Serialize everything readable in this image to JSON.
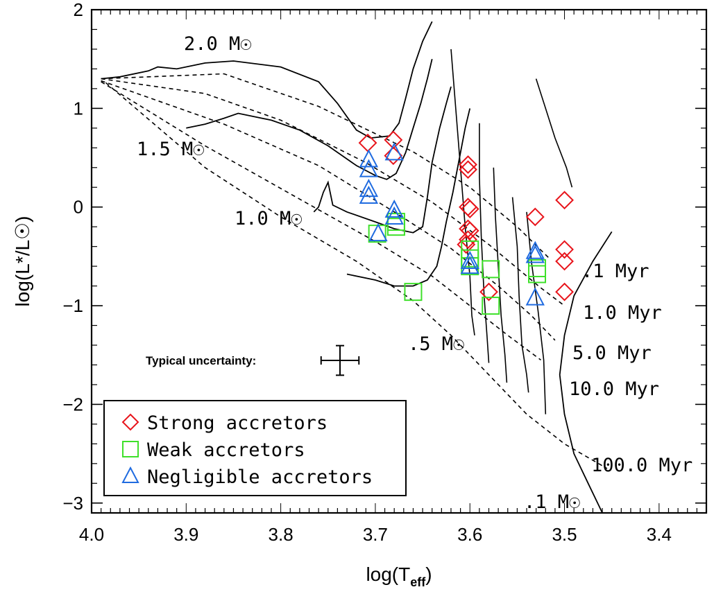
{
  "chart_data": {
    "type": "scatter",
    "xlabel_main": "log(T",
    "xlabel_sub": "eff",
    "xlabel_tail": ")",
    "ylabel": "log(L*/L☉)",
    "xlim": [
      4.0,
      3.35
    ],
    "ylim": [
      -3.1,
      2.0
    ],
    "x_axis_reversed": true,
    "x_ticks": [
      4.0,
      3.9,
      3.8,
      3.7,
      3.6,
      3.5,
      3.4
    ],
    "x_tick_labels": [
      "4.0",
      "3.9",
      "3.8",
      "3.7",
      "3.6",
      "3.5",
      "3.4"
    ],
    "y_ticks": [
      -3,
      -2,
      -1,
      0,
      1,
      2
    ],
    "y_tick_labels": [
      "−3",
      "−2",
      "−1",
      "0",
      "1",
      "2"
    ],
    "grid": false,
    "legend_placement": "bottom-left",
    "series": [
      {
        "name": "Strong accretors",
        "marker": "diamond",
        "color": "#e8141b",
        "points": [
          [
            3.708,
            0.65
          ],
          [
            3.681,
            0.68
          ],
          [
            3.681,
            0.52
          ],
          [
            3.602,
            0.43
          ],
          [
            3.602,
            0.38
          ],
          [
            3.602,
            0.0
          ],
          [
            3.6,
            -0.02
          ],
          [
            3.602,
            -0.22
          ],
          [
            3.6,
            -0.24
          ],
          [
            3.602,
            -0.33
          ],
          [
            3.604,
            -0.38
          ],
          [
            3.58,
            -0.86
          ],
          [
            3.531,
            -0.1
          ],
          [
            3.5,
            0.07
          ],
          [
            3.5,
            -0.43
          ],
          [
            3.5,
            -0.55
          ],
          [
            3.5,
            -0.86
          ]
        ]
      },
      {
        "name": "Weak accretors",
        "marker": "square",
        "color": "#3ee02a",
        "points": [
          [
            3.678,
            -0.15
          ],
          [
            3.678,
            -0.2
          ],
          [
            3.698,
            -0.27
          ],
          [
            3.66,
            -0.86
          ],
          [
            3.6,
            -0.43
          ],
          [
            3.6,
            -0.52
          ],
          [
            3.6,
            -0.6
          ],
          [
            3.578,
            -0.63
          ],
          [
            3.578,
            -1.0
          ],
          [
            3.529,
            -0.62
          ],
          [
            3.529,
            -0.68
          ]
        ]
      },
      {
        "name": "Negligible accretors",
        "marker": "triangle",
        "color": "#1f6be0",
        "points": [
          [
            3.707,
            0.48
          ],
          [
            3.707,
            0.38
          ],
          [
            3.707,
            0.18
          ],
          [
            3.707,
            0.11
          ],
          [
            3.68,
            0.55
          ],
          [
            3.68,
            -0.03
          ],
          [
            3.68,
            -0.1
          ],
          [
            3.697,
            -0.27
          ],
          [
            3.6,
            -0.55
          ],
          [
            3.6,
            -0.6
          ],
          [
            3.531,
            -0.45
          ],
          [
            3.531,
            -0.49
          ],
          [
            3.531,
            -0.92
          ]
        ]
      }
    ],
    "mass_tracks": [
      {
        "label": "2.0 M☉",
        "points": [
          [
            3.99,
            1.3
          ],
          [
            3.97,
            1.32
          ],
          [
            3.94,
            1.38
          ],
          [
            3.93,
            1.42
          ],
          [
            3.91,
            1.4
          ],
          [
            3.88,
            1.46
          ],
          [
            3.85,
            1.48
          ],
          [
            3.8,
            1.42
          ],
          [
            3.76,
            1.27
          ],
          [
            3.74,
            1.05
          ],
          [
            3.72,
            0.78
          ],
          [
            3.705,
            0.7
          ],
          [
            3.685,
            0.72
          ],
          [
            3.675,
            0.85
          ],
          [
            3.668,
            1.1
          ],
          [
            3.66,
            1.4
          ],
          [
            3.65,
            1.68
          ],
          [
            3.64,
            1.88
          ]
        ]
      },
      {
        "label": "1.5 M☉",
        "points": [
          [
            3.9,
            0.8
          ],
          [
            3.88,
            0.84
          ],
          [
            3.86,
            0.9
          ],
          [
            3.845,
            0.95
          ],
          [
            3.83,
            0.92
          ],
          [
            3.81,
            0.88
          ],
          [
            3.78,
            0.78
          ],
          [
            3.75,
            0.62
          ],
          [
            3.72,
            0.42
          ],
          [
            3.7,
            0.32
          ],
          [
            3.688,
            0.28
          ],
          [
            3.678,
            0.34
          ],
          [
            3.668,
            0.55
          ],
          [
            3.66,
            0.8
          ],
          [
            3.652,
            1.05
          ],
          [
            3.645,
            1.3
          ],
          [
            3.64,
            1.5
          ]
        ]
      },
      {
        "label": "1.0 M☉",
        "points": [
          [
            3.765,
            -0.05
          ],
          [
            3.76,
            0.0
          ],
          [
            3.755,
            0.15
          ],
          [
            3.75,
            0.25
          ],
          [
            3.745,
            0.02
          ],
          [
            3.73,
            -0.05
          ],
          [
            3.7,
            -0.15
          ],
          [
            3.68,
            -0.22
          ],
          [
            3.66,
            -0.26
          ],
          [
            3.65,
            -0.2
          ],
          [
            3.645,
            0.1
          ],
          [
            3.64,
            0.45
          ],
          [
            3.632,
            0.8
          ],
          [
            3.625,
            1.05
          ],
          [
            3.62,
            1.22
          ]
        ]
      },
      {
        "label": ".5 M☉",
        "points": [
          [
            3.73,
            -0.68
          ],
          [
            3.7,
            -0.74
          ],
          [
            3.68,
            -0.8
          ],
          [
            3.66,
            -0.8
          ],
          [
            3.645,
            -0.74
          ],
          [
            3.635,
            -0.6
          ],
          [
            3.63,
            -0.4
          ],
          [
            3.625,
            -0.15
          ],
          [
            3.618,
            0.15
          ],
          [
            3.612,
            0.45
          ],
          [
            3.605,
            0.8
          ],
          [
            3.6,
            1.0
          ]
        ]
      }
    ],
    "isochrones": [
      {
        "label": ".1 Myr",
        "points": [
          [
            3.99,
            1.3
          ],
          [
            3.86,
            1.35
          ],
          [
            3.76,
            1.02
          ],
          [
            3.66,
            0.56
          ],
          [
            3.6,
            0.2
          ],
          [
            3.55,
            -0.2
          ],
          [
            3.515,
            -0.53
          ]
        ]
      },
      {
        "label": "1.0 Myr",
        "points": [
          [
            3.99,
            1.3
          ],
          [
            3.88,
            1.15
          ],
          [
            3.8,
            0.88
          ],
          [
            3.71,
            0.45
          ],
          [
            3.64,
            0.05
          ],
          [
            3.58,
            -0.38
          ],
          [
            3.525,
            -0.82
          ],
          [
            3.5,
            -1.0
          ]
        ]
      },
      {
        "label": "5.0 Myr",
        "points": [
          [
            3.99,
            1.28
          ],
          [
            3.86,
            0.84
          ],
          [
            3.76,
            0.42
          ],
          [
            3.68,
            -0.05
          ],
          [
            3.62,
            -0.42
          ],
          [
            3.57,
            -0.8
          ],
          [
            3.535,
            -1.1
          ],
          [
            3.51,
            -1.35
          ]
        ]
      },
      {
        "label": "10.0 Myr",
        "points": [
          [
            3.99,
            1.27
          ],
          [
            3.88,
            0.62
          ],
          [
            3.78,
            0.08
          ],
          [
            3.7,
            -0.35
          ],
          [
            3.64,
            -0.7
          ],
          [
            3.6,
            -1.0
          ],
          [
            3.56,
            -1.3
          ],
          [
            3.525,
            -1.55
          ]
        ]
      },
      {
        "label": "100.0 Myr",
        "points": [
          [
            3.985,
            1.26
          ],
          [
            3.88,
            0.4
          ],
          [
            3.8,
            -0.1
          ],
          [
            3.72,
            -0.55
          ],
          [
            3.66,
            -0.95
          ],
          [
            3.62,
            -1.3
          ],
          [
            3.58,
            -1.7
          ],
          [
            3.54,
            -2.1
          ],
          [
            3.5,
            -2.4
          ],
          [
            3.455,
            -2.65
          ]
        ]
      }
    ],
    "vertical_tracks": [
      [
        [
          3.62,
          1.6
        ],
        [
          3.615,
          1.0
        ],
        [
          3.61,
          0.4
        ],
        [
          3.605,
          -0.2
        ],
        [
          3.6,
          -0.7
        ],
        [
          3.598,
          -1.1
        ],
        [
          3.595,
          -1.3
        ]
      ],
      [
        [
          3.59,
          0.85
        ],
        [
          3.59,
          0.3
        ],
        [
          3.588,
          -0.3
        ],
        [
          3.585,
          -0.9
        ],
        [
          3.582,
          -1.3
        ],
        [
          3.58,
          -1.58
        ]
      ],
      [
        [
          3.575,
          0.4
        ],
        [
          3.573,
          -0.1
        ],
        [
          3.57,
          -0.6
        ],
        [
          3.567,
          -1.1
        ],
        [
          3.563,
          -1.5
        ],
        [
          3.561,
          -1.78
        ]
      ],
      [
        [
          3.555,
          0.1
        ],
        [
          3.55,
          -0.4
        ],
        [
          3.548,
          -0.9
        ],
        [
          3.545,
          -1.4
        ],
        [
          3.54,
          -1.7
        ],
        [
          3.538,
          -1.88
        ]
      ],
      [
        [
          3.54,
          -0.05
        ],
        [
          3.535,
          -0.55
        ],
        [
          3.528,
          -1.05
        ],
        [
          3.522,
          -1.55
        ],
        [
          3.52,
          -2.1
        ]
      ],
      [
        [
          3.53,
          1.3
        ],
        [
          3.52,
          1.0
        ],
        [
          3.51,
          0.7
        ],
        [
          3.498,
          0.4
        ],
        [
          3.492,
          0.2
        ]
      ]
    ],
    "outer_curve": [
      [
        3.45,
        -0.25
      ],
      [
        3.47,
        -0.55
      ],
      [
        3.49,
        -0.9
      ],
      [
        3.5,
        -1.3
      ],
      [
        3.505,
        -1.7
      ],
      [
        3.5,
        -2.1
      ],
      [
        3.49,
        -2.5
      ],
      [
        3.475,
        -2.8
      ],
      [
        3.46,
        -3.1
      ]
    ],
    "annotations": {
      "track_labels": [
        "2.0 M☉",
        "1.5 M☉",
        "1.0 M☉",
        ".5 M☉",
        ".1 M☉"
      ],
      "isochrone_labels": [
        ".1 Myr",
        "1.0 Myr",
        "5.0 Myr",
        "10.0 Myr",
        "100.0 Myr"
      ],
      "uncertainty_label": "Typical uncertainty:",
      "uncertainty_x": 0.02,
      "uncertainty_y": 0.15
    }
  }
}
